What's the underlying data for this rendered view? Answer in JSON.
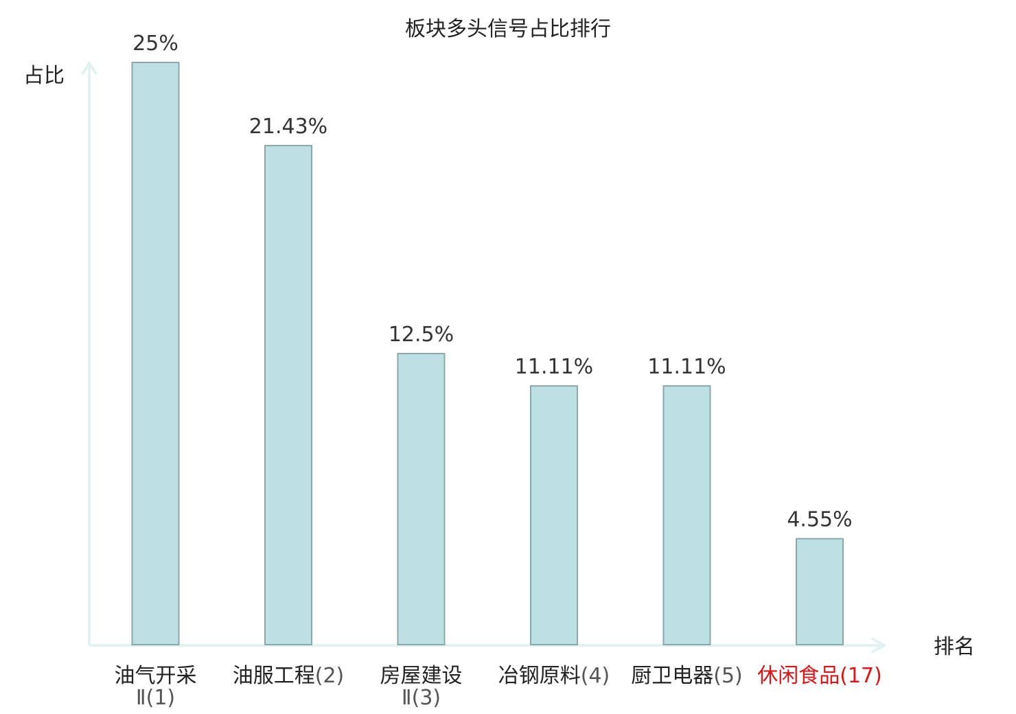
{
  "chart_data": {
    "type": "bar",
    "title": "板块多头信号占比排行",
    "ylabel": "占比",
    "xlabel": "排名",
    "ylim": [
      0,
      25
    ],
    "grid": false,
    "legend": "none",
    "colors": {
      "bar_fill": "#bde0e3",
      "bar_stroke": "#8aa8ab",
      "axis": "#e1f2f0",
      "highlight_text": "#e01414"
    },
    "categories": [
      {
        "name": "油气开采Ⅱ",
        "rank": "(1)",
        "highlight": false
      },
      {
        "name": "油服工程",
        "rank": "(2)",
        "highlight": false
      },
      {
        "name": "房屋建设Ⅱ",
        "rank": "(3)",
        "highlight": false
      },
      {
        "name": "冶钢原料",
        "rank": "(4)",
        "highlight": false
      },
      {
        "name": "厨卫电器",
        "rank": "(5)",
        "highlight": false
      },
      {
        "name": "休闲食品",
        "rank": "(17)",
        "highlight": true
      }
    ],
    "values": [
      25,
      21.43,
      12.5,
      11.11,
      11.11,
      4.55
    ],
    "data_labels": [
      "25%",
      "21.43%",
      "12.5%",
      "11.11%",
      "11.11%",
      "4.55%"
    ]
  }
}
